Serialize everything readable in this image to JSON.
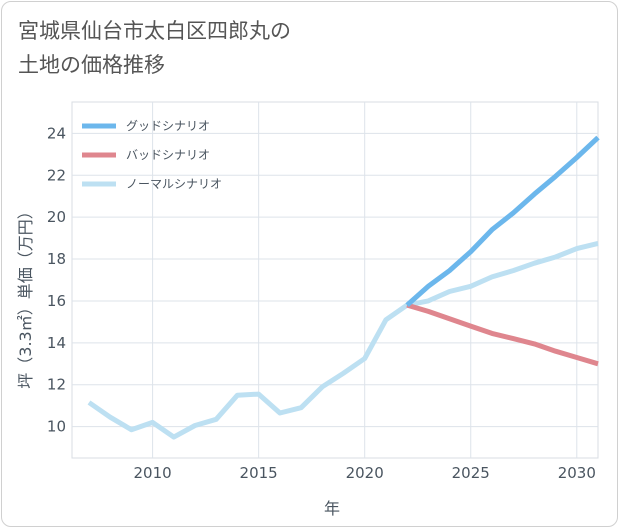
{
  "title_lines": [
    "宮城県仙台市太白区四郎丸の",
    "土地の価格推移"
  ],
  "chart_data": {
    "type": "line",
    "title": "宮城県仙台市太白区四郎丸の土地の価格推移",
    "xlabel": "年",
    "ylabel": "坪（3.3㎡）単価（万円）",
    "xlim": [
      2006.2,
      2031
    ],
    "ylim": [
      8.5,
      25.5
    ],
    "xticks": [
      2010,
      2015,
      2020,
      2025,
      2030
    ],
    "yticks": [
      10,
      12,
      14,
      16,
      18,
      20,
      22,
      24
    ],
    "grid": true,
    "legend_position": "top-left",
    "series": [
      {
        "name": "グッドシナリオ",
        "color": "#6cb7ec",
        "x": [
          2022,
          2023,
          2024,
          2025,
          2026,
          2027,
          2028,
          2029,
          2030,
          2031
        ],
        "values": [
          15.8,
          16.7,
          17.45,
          18.35,
          19.4,
          20.2,
          21.1,
          21.95,
          22.85,
          23.8
        ]
      },
      {
        "name": "バッドシナリオ",
        "color": "#df868e",
        "x": [
          2022,
          2023,
          2024,
          2025,
          2026,
          2027,
          2028,
          2029,
          2030,
          2031
        ],
        "values": [
          15.8,
          15.5,
          15.15,
          14.8,
          14.45,
          14.2,
          13.95,
          13.6,
          13.3,
          13.0
        ]
      },
      {
        "name": "ノーマルシナリオ",
        "color": "#bde0f2",
        "x": [
          2007,
          2008,
          2009,
          2010,
          2011,
          2012,
          2013,
          2014,
          2015,
          2016,
          2017,
          2018,
          2019,
          2020,
          2021,
          2022,
          2023,
          2024,
          2025,
          2026,
          2027,
          2028,
          2029,
          2030,
          2031
        ],
        "values": [
          11.15,
          10.45,
          9.85,
          10.2,
          9.5,
          10.05,
          10.35,
          11.5,
          11.55,
          10.65,
          10.9,
          11.9,
          12.55,
          13.25,
          15.1,
          15.8,
          16.0,
          16.45,
          16.7,
          17.15,
          17.45,
          17.8,
          18.1,
          18.5,
          18.75
        ]
      }
    ]
  }
}
